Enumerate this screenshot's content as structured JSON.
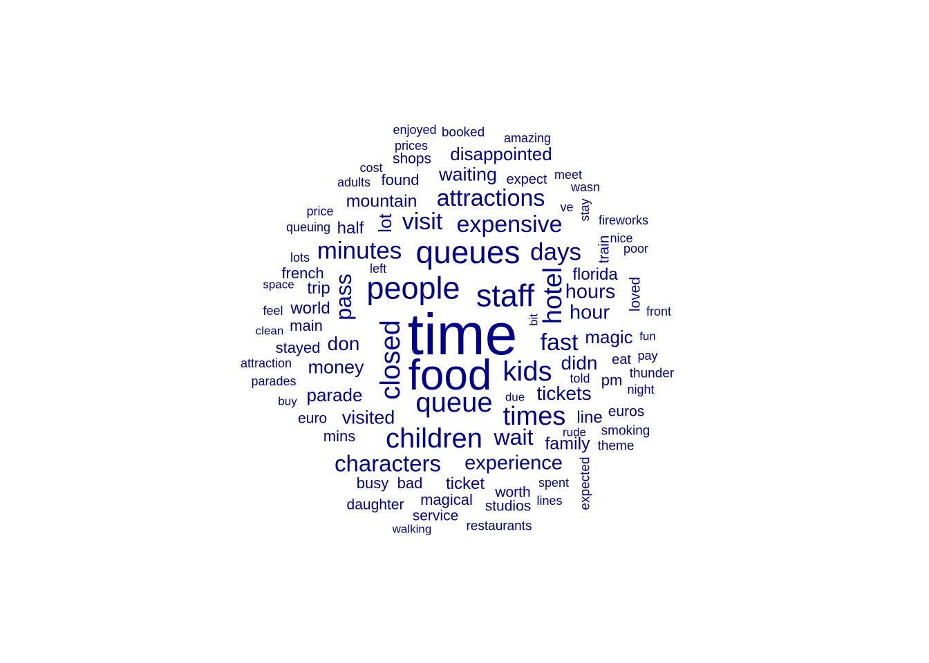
{
  "color": "#00008B",
  "words": [
    {
      "text": "time"
    },
    {
      "text": "food"
    },
    {
      "text": "queues"
    },
    {
      "text": "people"
    },
    {
      "text": "staff"
    },
    {
      "text": "closed"
    },
    {
      "text": "queue"
    },
    {
      "text": "children"
    },
    {
      "text": "kids"
    },
    {
      "text": "times"
    },
    {
      "text": "hotel"
    },
    {
      "text": "minutes"
    },
    {
      "text": "attractions"
    },
    {
      "text": "expensive"
    },
    {
      "text": "days"
    },
    {
      "text": "visit"
    },
    {
      "text": "characters"
    },
    {
      "text": "fast"
    },
    {
      "text": "wait"
    },
    {
      "text": "experience"
    },
    {
      "text": "pass"
    },
    {
      "text": "hours"
    },
    {
      "text": "disappointed"
    },
    {
      "text": "waiting"
    },
    {
      "text": "tickets"
    },
    {
      "text": "money"
    },
    {
      "text": "visited"
    },
    {
      "text": "didn"
    },
    {
      "text": "hour"
    },
    {
      "text": "parade"
    },
    {
      "text": "magic"
    },
    {
      "text": "don"
    },
    {
      "text": "mountain"
    },
    {
      "text": "lot"
    },
    {
      "text": "family"
    },
    {
      "text": "florida"
    },
    {
      "text": "ticket"
    },
    {
      "text": "magical"
    },
    {
      "text": "line"
    },
    {
      "text": "half"
    },
    {
      "text": "french"
    },
    {
      "text": "world"
    },
    {
      "text": "trip"
    },
    {
      "text": "mins"
    },
    {
      "text": "pm"
    },
    {
      "text": "found"
    },
    {
      "text": "busy"
    },
    {
      "text": "bad"
    },
    {
      "text": "main"
    },
    {
      "text": "stayed"
    },
    {
      "text": "worth"
    },
    {
      "text": "studios"
    },
    {
      "text": "daughter"
    },
    {
      "text": "shops"
    },
    {
      "text": "euros"
    },
    {
      "text": "euro"
    },
    {
      "text": "service"
    },
    {
      "text": "loved"
    },
    {
      "text": "train"
    },
    {
      "text": "expected"
    },
    {
      "text": "restaurants"
    },
    {
      "text": "eat"
    },
    {
      "text": "expect"
    },
    {
      "text": "smoking"
    },
    {
      "text": "theme"
    },
    {
      "text": "thunder"
    },
    {
      "text": "prices"
    },
    {
      "text": "booked"
    },
    {
      "text": "amazing"
    },
    {
      "text": "enjoyed"
    },
    {
      "text": "adults"
    },
    {
      "text": "cost"
    },
    {
      "text": "meet"
    },
    {
      "text": "wasn"
    },
    {
      "text": "price"
    },
    {
      "text": "queuing"
    },
    {
      "text": "stay"
    },
    {
      "text": "ve"
    },
    {
      "text": "fireworks"
    },
    {
      "text": "nice"
    },
    {
      "text": "poor"
    },
    {
      "text": "lots"
    },
    {
      "text": "left"
    },
    {
      "text": "space"
    },
    {
      "text": "feel"
    },
    {
      "text": "clean"
    },
    {
      "text": "front"
    },
    {
      "text": "fun"
    },
    {
      "text": "pay"
    },
    {
      "text": "attraction"
    },
    {
      "text": "parades"
    },
    {
      "text": "buy"
    },
    {
      "text": "told"
    },
    {
      "text": "night"
    },
    {
      "text": "due"
    },
    {
      "text": "rude"
    },
    {
      "text": "spent"
    },
    {
      "text": "lines"
    },
    {
      "text": "walking"
    },
    {
      "text": "bit"
    }
  ]
}
